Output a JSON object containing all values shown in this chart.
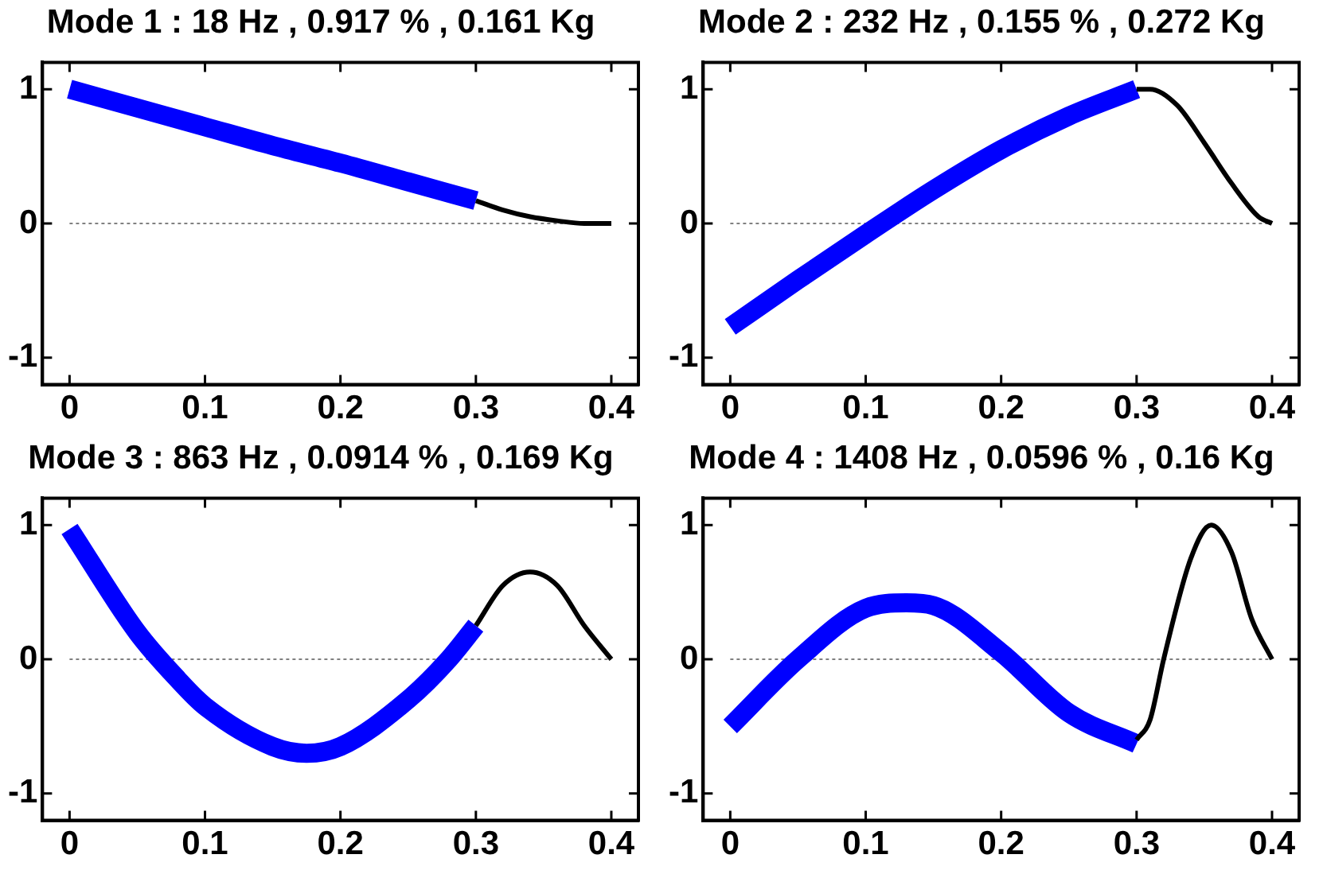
{
  "chart_data": [
    {
      "type": "line",
      "title": "Mode 1 : 18 Hz , 0.917 % , 0.161 Kg",
      "xlim": [
        -0.02,
        0.42
      ],
      "xticks": [
        0,
        0.1,
        0.2,
        0.3,
        0.4
      ],
      "ylim": [
        -1.2,
        1.2
      ],
      "yticks": [
        -1,
        0,
        1
      ],
      "grid": false,
      "legend": false,
      "marker": "none",
      "ref_lines": [
        {
          "axis": "y",
          "value": 0,
          "color": "#808080",
          "line_style": "dotted"
        }
      ],
      "series": [
        {
          "color": "#0000ff",
          "x": [
            0,
            0.05,
            0.1,
            0.15,
            0.2,
            0.25,
            0.3
          ],
          "values": [
            1.0,
            0.86,
            0.72,
            0.58,
            0.45,
            0.31,
            0.17
          ]
        },
        {
          "color": "#000000",
          "x": [
            0.3,
            0.32,
            0.34,
            0.36,
            0.38,
            0.4
          ],
          "values": [
            0.17,
            0.1,
            0.05,
            0.02,
            0.0,
            0.0
          ]
        }
      ]
    },
    {
      "type": "line",
      "title": "Mode 2 : 232 Hz , 0.155 % , 0.272 Kg",
      "xlim": [
        -0.02,
        0.42
      ],
      "xticks": [
        0,
        0.1,
        0.2,
        0.3,
        0.4
      ],
      "ylim": [
        -1.2,
        1.2
      ],
      "yticks": [
        -1,
        0,
        1
      ],
      "grid": false,
      "legend": false,
      "marker": "none",
      "ref_lines": [
        {
          "axis": "y",
          "value": 0,
          "color": "#808080",
          "line_style": "dotted"
        }
      ],
      "series": [
        {
          "color": "#0000ff",
          "x": [
            0,
            0.05,
            0.1,
            0.15,
            0.2,
            0.25,
            0.3
          ],
          "values": [
            -0.77,
            -0.42,
            -0.08,
            0.25,
            0.55,
            0.8,
            1.0
          ]
        },
        {
          "color": "#000000",
          "x": [
            0.3,
            0.31,
            0.33,
            0.35,
            0.37,
            0.39,
            0.4
          ],
          "values": [
            1.0,
            1.0,
            0.88,
            0.6,
            0.3,
            0.05,
            0.0
          ]
        }
      ]
    },
    {
      "type": "line",
      "title": "Mode 3 : 863 Hz , 0.0914 % , 0.169 Kg",
      "xlim": [
        -0.02,
        0.42
      ],
      "xticks": [
        0,
        0.1,
        0.2,
        0.3,
        0.4
      ],
      "ylim": [
        -1.2,
        1.2
      ],
      "yticks": [
        -1,
        0,
        1
      ],
      "grid": false,
      "legend": false,
      "marker": "none",
      "ref_lines": [
        {
          "axis": "y",
          "value": 0,
          "color": "#808080",
          "line_style": "dotted"
        }
      ],
      "series": [
        {
          "color": "#0000ff",
          "x": [
            0,
            0.05,
            0.08,
            0.1,
            0.15,
            0.175,
            0.2,
            0.25,
            0.28,
            0.3
          ],
          "values": [
            0.97,
            0.2,
            -0.15,
            -0.35,
            -0.65,
            -0.7,
            -0.65,
            -0.3,
            0.0,
            0.25
          ]
        },
        {
          "color": "#000000",
          "x": [
            0.3,
            0.32,
            0.34,
            0.36,
            0.38,
            0.4
          ],
          "values": [
            0.25,
            0.55,
            0.65,
            0.55,
            0.25,
            0.0
          ]
        }
      ]
    },
    {
      "type": "line",
      "title": "Mode 4 : 1408 Hz , 0.0596 % , 0.16 Kg",
      "xlim": [
        -0.02,
        0.42
      ],
      "xticks": [
        0,
        0.1,
        0.2,
        0.3,
        0.4
      ],
      "ylim": [
        -1.2,
        1.2
      ],
      "yticks": [
        -1,
        0,
        1
      ],
      "grid": false,
      "legend": false,
      "marker": "none",
      "ref_lines": [
        {
          "axis": "y",
          "value": 0,
          "color": "#808080",
          "line_style": "dotted"
        }
      ],
      "series": [
        {
          "color": "#0000ff",
          "x": [
            0,
            0.05,
            0.1,
            0.13,
            0.15,
            0.2,
            0.25,
            0.3
          ],
          "values": [
            -0.5,
            0.0,
            0.38,
            0.42,
            0.4,
            0.05,
            -0.4,
            -0.63
          ]
        },
        {
          "color": "#000000",
          "x": [
            0.3,
            0.31,
            0.32,
            0.34,
            0.355,
            0.37,
            0.385,
            0.4
          ],
          "values": [
            -0.6,
            -0.45,
            0.0,
            0.75,
            1.0,
            0.8,
            0.3,
            0.0
          ]
        }
      ]
    }
  ]
}
